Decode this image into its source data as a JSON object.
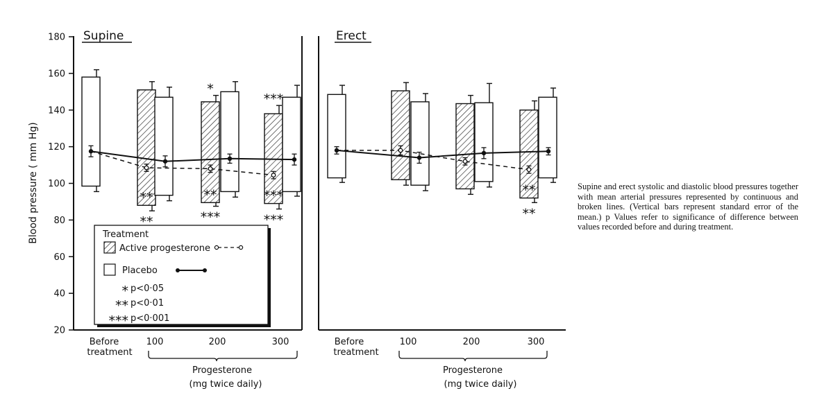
{
  "caption": "Supine and erect systolic and diastolic blood pressures together with mean arterial pressures represented by continuous and broken lines. (Vertical bars represent standard error of the mean.) p Values refer to significance of difference between values recorded before and during treatment.",
  "legend": {
    "title": "Treatment",
    "active_label": "Active progesterone",
    "placebo_label": "Placebo",
    "sig": [
      {
        "stars": "*",
        "text": "p<0·05"
      },
      {
        "stars": "**",
        "text": "p<0·01"
      },
      {
        "stars": "***",
        "text": "p<0·001"
      }
    ]
  },
  "chart_data": [
    {
      "type": "bar",
      "title": "Supine",
      "ylabel": "Blood pressure ( mm Hg)",
      "ylim": [
        20,
        180
      ],
      "yticks": [
        20,
        40,
        60,
        80,
        100,
        120,
        140,
        160,
        180
      ],
      "categories": [
        "Before treatment",
        "100",
        "200",
        "300"
      ],
      "group_label": "Progesterone",
      "group_sublabel": "(mg twice daily)",
      "before": {
        "systolic": 158,
        "diastolic": 98.5,
        "systolic_se": 4,
        "diastolic_se": 3,
        "mean_arterial": 117.5,
        "mean_arterial_se": 3
      },
      "active": [
        {
          "dose": 100,
          "systolic": 151,
          "diastolic": 88,
          "systolic_se": 4.5,
          "diastolic_se": 3,
          "mean_arterial": 108.5,
          "mean_arterial_se": 2,
          "sig_systolic": "",
          "sig_mean": "**",
          "sig_diastolic": "**"
        },
        {
          "dose": 200,
          "systolic": 144.5,
          "diastolic": 89.5,
          "systolic_se": 3.5,
          "diastolic_se": 2,
          "mean_arterial": 108,
          "mean_arterial_se": 2,
          "sig_systolic": "*",
          "sig_mean": "**",
          "sig_diastolic": "***"
        },
        {
          "dose": 300,
          "systolic": 138,
          "diastolic": 89,
          "systolic_se": 4.5,
          "diastolic_se": 3,
          "mean_arterial": 104.5,
          "mean_arterial_se": 2,
          "sig_systolic": "***",
          "sig_mean": "***",
          "sig_diastolic": "***"
        }
      ],
      "placebo": [
        {
          "dose": 100,
          "systolic": 147,
          "diastolic": 93.5,
          "systolic_se": 5.5,
          "diastolic_se": 3,
          "mean_arterial": 112,
          "mean_arterial_se": 3
        },
        {
          "dose": 200,
          "systolic": 150,
          "diastolic": 95.5,
          "systolic_se": 5.5,
          "diastolic_se": 3,
          "mean_arterial": 113.5,
          "mean_arterial_se": 2.5
        },
        {
          "dose": 300,
          "systolic": 147,
          "diastolic": 95.5,
          "systolic_se": 6.5,
          "diastolic_se": 2.5,
          "mean_arterial": 113,
          "mean_arterial_se": 3
        }
      ]
    },
    {
      "type": "bar",
      "title": "Erect",
      "ylabel": "",
      "ylim": [
        20,
        180
      ],
      "categories": [
        "Before treatment",
        "100",
        "200",
        "300"
      ],
      "group_label": "Progesterone",
      "group_sublabel": "(mg twice daily)",
      "before": {
        "systolic": 148.5,
        "diastolic": 103,
        "systolic_se": 5,
        "diastolic_se": 2.5,
        "mean_arterial": 118,
        "mean_arterial_se": 2
      },
      "active": [
        {
          "dose": 100,
          "systolic": 150.5,
          "diastolic": 102,
          "systolic_se": 4.5,
          "diastolic_se": 3,
          "mean_arterial": 118,
          "mean_arterial_se": 2.5,
          "sig_systolic": "",
          "sig_mean": "",
          "sig_diastolic": ""
        },
        {
          "dose": 200,
          "systolic": 143.5,
          "diastolic": 97,
          "systolic_se": 4.5,
          "diastolic_se": 3,
          "mean_arterial": 112,
          "mean_arterial_se": 2,
          "sig_systolic": "",
          "sig_mean": "",
          "sig_diastolic": ""
        },
        {
          "dose": 300,
          "systolic": 140,
          "diastolic": 92,
          "systolic_se": 5,
          "diastolic_se": 2.5,
          "mean_arterial": 107.5,
          "mean_arterial_se": 2,
          "sig_systolic": "",
          "sig_mean": "**",
          "sig_diastolic": "**"
        }
      ],
      "placebo": [
        {
          "dose": 100,
          "systolic": 144.5,
          "diastolic": 99,
          "systolic_se": 4.5,
          "diastolic_se": 3,
          "mean_arterial": 114,
          "mean_arterial_se": 3
        },
        {
          "dose": 200,
          "systolic": 144,
          "diastolic": 101,
          "systolic_se": 10.5,
          "diastolic_se": 3,
          "mean_arterial": 116.5,
          "mean_arterial_se": 3
        },
        {
          "dose": 300,
          "systolic": 147,
          "diastolic": 103,
          "systolic_se": 5,
          "diastolic_se": 2.5,
          "mean_arterial": 117.5,
          "mean_arterial_se": 2
        }
      ]
    }
  ]
}
